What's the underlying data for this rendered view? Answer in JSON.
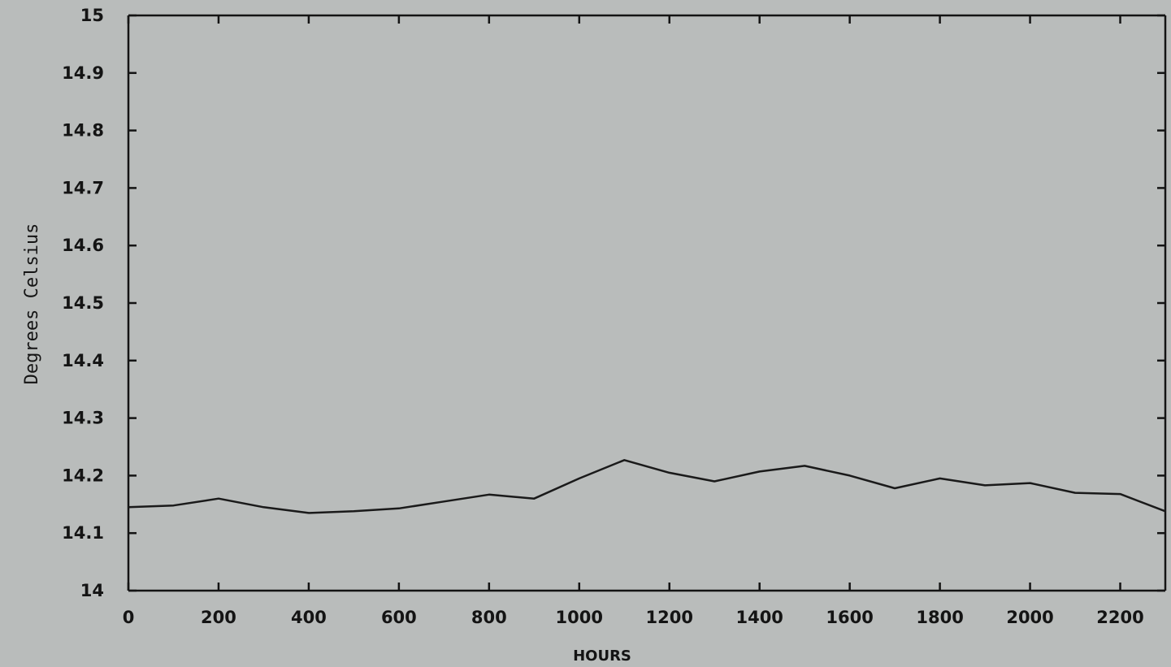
{
  "chart_data": {
    "type": "line",
    "title": "",
    "xlabel": "HOURS",
    "ylabel": "Degrees Celsius",
    "xlim": [
      0,
      2300
    ],
    "ylim": [
      14,
      15
    ],
    "xticks": [
      0,
      200,
      400,
      600,
      800,
      1000,
      1200,
      1400,
      1600,
      1800,
      2000,
      2200
    ],
    "yticks": [
      14,
      14.1,
      14.2,
      14.3,
      14.4,
      14.5,
      14.6,
      14.7,
      14.8,
      14.9,
      15
    ],
    "grid": false,
    "series": [
      {
        "name": "",
        "x": [
          0,
          100,
          200,
          300,
          400,
          500,
          600,
          700,
          800,
          900,
          1000,
          1100,
          1200,
          1300,
          1400,
          1500,
          1600,
          1700,
          1800,
          1900,
          2000,
          2100,
          2200,
          2300
        ],
        "y": [
          14.145,
          14.148,
          14.16,
          14.145,
          14.135,
          14.138,
          14.143,
          14.155,
          14.167,
          14.16,
          14.195,
          14.227,
          14.205,
          14.19,
          14.207,
          14.217,
          14.2,
          14.178,
          14.195,
          14.183,
          14.187,
          14.17,
          14.168,
          14.138
        ],
        "color": "#1a1a1a"
      }
    ]
  },
  "colors": {
    "background": "#b9bcbb",
    "ink": "#141414"
  }
}
